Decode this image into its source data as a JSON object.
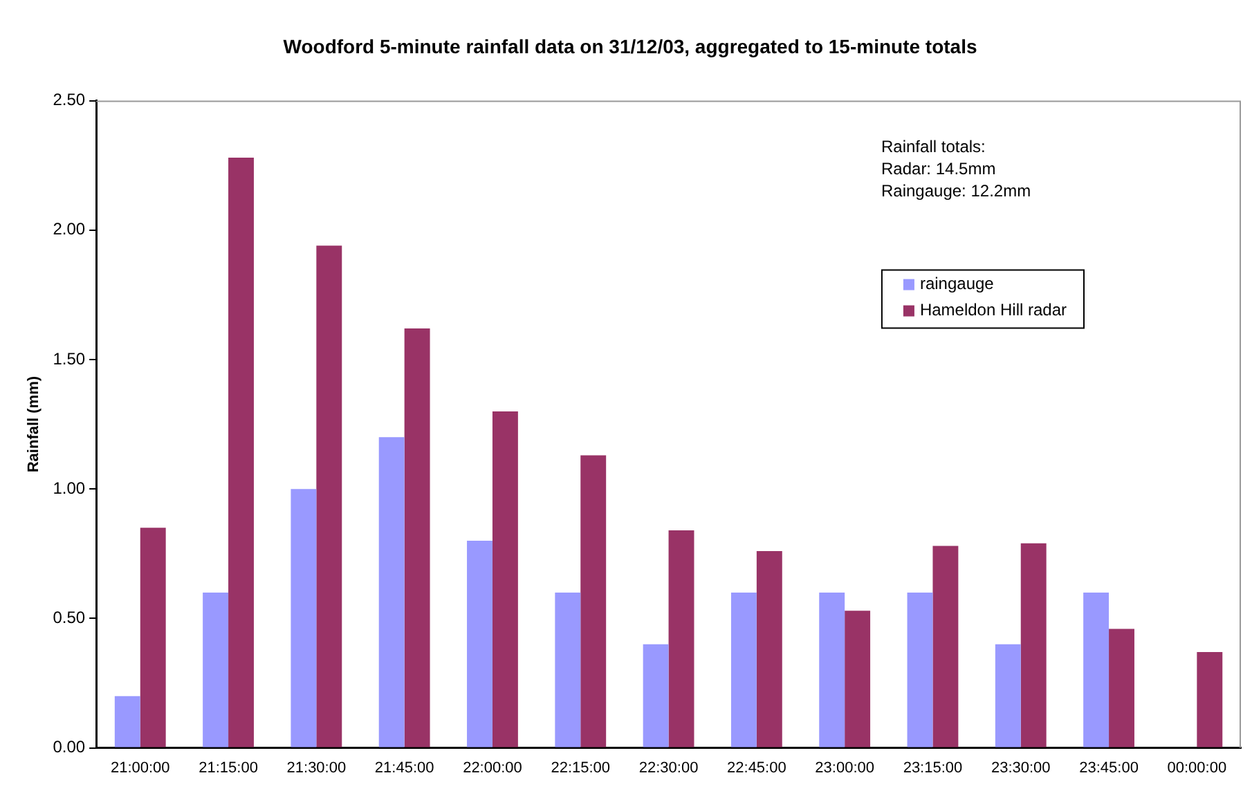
{
  "chart_data": {
    "type": "bar",
    "title": "Woodford 5-minute rainfall data on 31/12/03, aggregated to 15-minute totals",
    "ylabel": "Rainfall (mm)",
    "categories": [
      "21:00:00",
      "21:15:00",
      "21:30:00",
      "21:45:00",
      "22:00:00",
      "22:15:00",
      "22:30:00",
      "22:45:00",
      "23:00:00",
      "23:15:00",
      "23:30:00",
      "23:45:00",
      "00:00:00"
    ],
    "series": [
      {
        "name": "raingauge",
        "color": "#9999ff",
        "values": [
          0.2,
          0.6,
          1.0,
          1.2,
          0.8,
          0.6,
          0.4,
          0.6,
          0.6,
          0.6,
          0.4,
          0.6,
          0
        ]
      },
      {
        "name": "Hameldon Hill radar",
        "color": "#993366",
        "values": [
          0.85,
          2.28,
          1.94,
          1.62,
          1.3,
          1.13,
          0.84,
          0.76,
          0.53,
          0.78,
          0.79,
          0.46,
          0.37
        ]
      }
    ],
    "ylim": [
      0,
      2.5
    ],
    "yticks": [
      {
        "value": 0,
        "label": "0.00"
      },
      {
        "value": 0.5,
        "label": "0.50"
      },
      {
        "value": 1,
        "label": "1.00"
      },
      {
        "value": 1.5,
        "label": "1.50"
      },
      {
        "value": 2,
        "label": "2.00"
      },
      {
        "value": 2.5,
        "label": "2.50"
      }
    ],
    "grid": false,
    "legend": "top right",
    "annotations": [
      "Rainfall totals:\nRadar: 14.5mm\nRaingauge: 12.2mm"
    ]
  }
}
